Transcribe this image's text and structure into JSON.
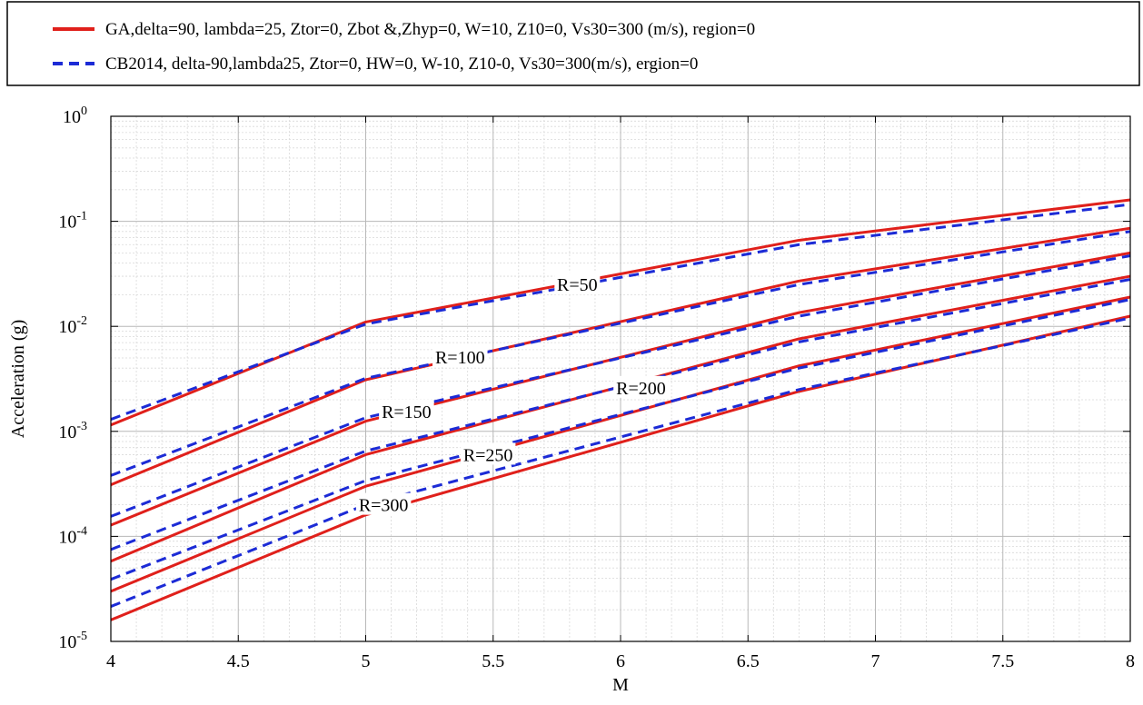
{
  "chart_data": {
    "type": "line",
    "title": "",
    "xlabel": "M",
    "ylabel": "Acceleration (g)",
    "xlim": [
      4,
      8
    ],
    "ylim": [
      1e-05,
      1
    ],
    "yscale": "log",
    "grid": true,
    "legend_position": "top",
    "x_ticks": [
      "4",
      "4.5",
      "5",
      "5.5",
      "6",
      "6.5",
      "7",
      "7.5",
      "8"
    ],
    "y_ticks": [
      {
        "base": "10",
        "exp": "-5"
      },
      {
        "base": "10",
        "exp": "-4"
      },
      {
        "base": "10",
        "exp": "-3"
      },
      {
        "base": "10",
        "exp": "-2"
      },
      {
        "base": "10",
        "exp": "-1"
      },
      {
        "base": "10",
        "exp": "0"
      }
    ],
    "legend": [
      {
        "label": "GA,delta=90, lambda=25, Ztor=0, Zbot &,Zhyp=0, W=10, Z10=0, Vs30=300 (m/s), region=0",
        "color": "#e0201b",
        "style": "solid"
      },
      {
        "label": "CB2014, delta-90,lambda25, Ztor=0, HW=0, W-10, Z10-0, Vs30=300(m/s), ergion=0",
        "color": "#1c2bd6",
        "style": "dashed"
      }
    ],
    "x": [
      4,
      5,
      6.7,
      8
    ],
    "series": [
      {
        "model": "GA",
        "label": "R=50",
        "values": [
          0.00115,
          0.011,
          0.066,
          0.16
        ]
      },
      {
        "model": "CB2014",
        "label": "R=50",
        "values": [
          0.0013,
          0.0105,
          0.06,
          0.145
        ]
      },
      {
        "model": "GA",
        "label": "R=100",
        "values": [
          0.00031,
          0.0031,
          0.027,
          0.086
        ]
      },
      {
        "model": "CB2014",
        "label": "R=100",
        "values": [
          0.00038,
          0.0032,
          0.025,
          0.08
        ]
      },
      {
        "model": "GA",
        "label": "R=150",
        "values": [
          0.000128,
          0.00125,
          0.0135,
          0.05
        ]
      },
      {
        "model": "CB2014",
        "label": "R=150",
        "values": [
          0.000155,
          0.00135,
          0.0125,
          0.047
        ]
      },
      {
        "model": "GA",
        "label": "R=200",
        "values": [
          5.8e-05,
          0.0006,
          0.0076,
          0.03
        ]
      },
      {
        "model": "CB2014",
        "label": "R=200",
        "values": [
          7.5e-05,
          0.00065,
          0.0071,
          0.028
        ]
      },
      {
        "model": "GA",
        "label": "R=250",
        "values": [
          3e-05,
          0.0003,
          0.0042,
          0.019
        ]
      },
      {
        "model": "CB2014",
        "label": "R=250",
        "values": [
          3.9e-05,
          0.00034,
          0.004,
          0.018
        ]
      },
      {
        "model": "GA",
        "label": "R=300",
        "values": [
          1.6e-05,
          0.00016,
          0.0024,
          0.0125
        ]
      },
      {
        "model": "CB2014",
        "label": "R=300",
        "values": [
          2.15e-05,
          0.0002,
          0.0025,
          0.012
        ]
      }
    ],
    "annotations": [
      {
        "text": "R=50",
        "x": 5.83,
        "y": 0.025
      },
      {
        "text": "R=100",
        "x": 5.37,
        "y": 0.0051
      },
      {
        "text": "R=150",
        "x": 5.16,
        "y": 0.00155
      },
      {
        "text": "R=200",
        "x": 6.08,
        "y": 0.0026
      },
      {
        "text": "R=250",
        "x": 5.48,
        "y": 0.0006
      },
      {
        "text": "R=300",
        "x": 5.07,
        "y": 0.0002
      }
    ]
  }
}
